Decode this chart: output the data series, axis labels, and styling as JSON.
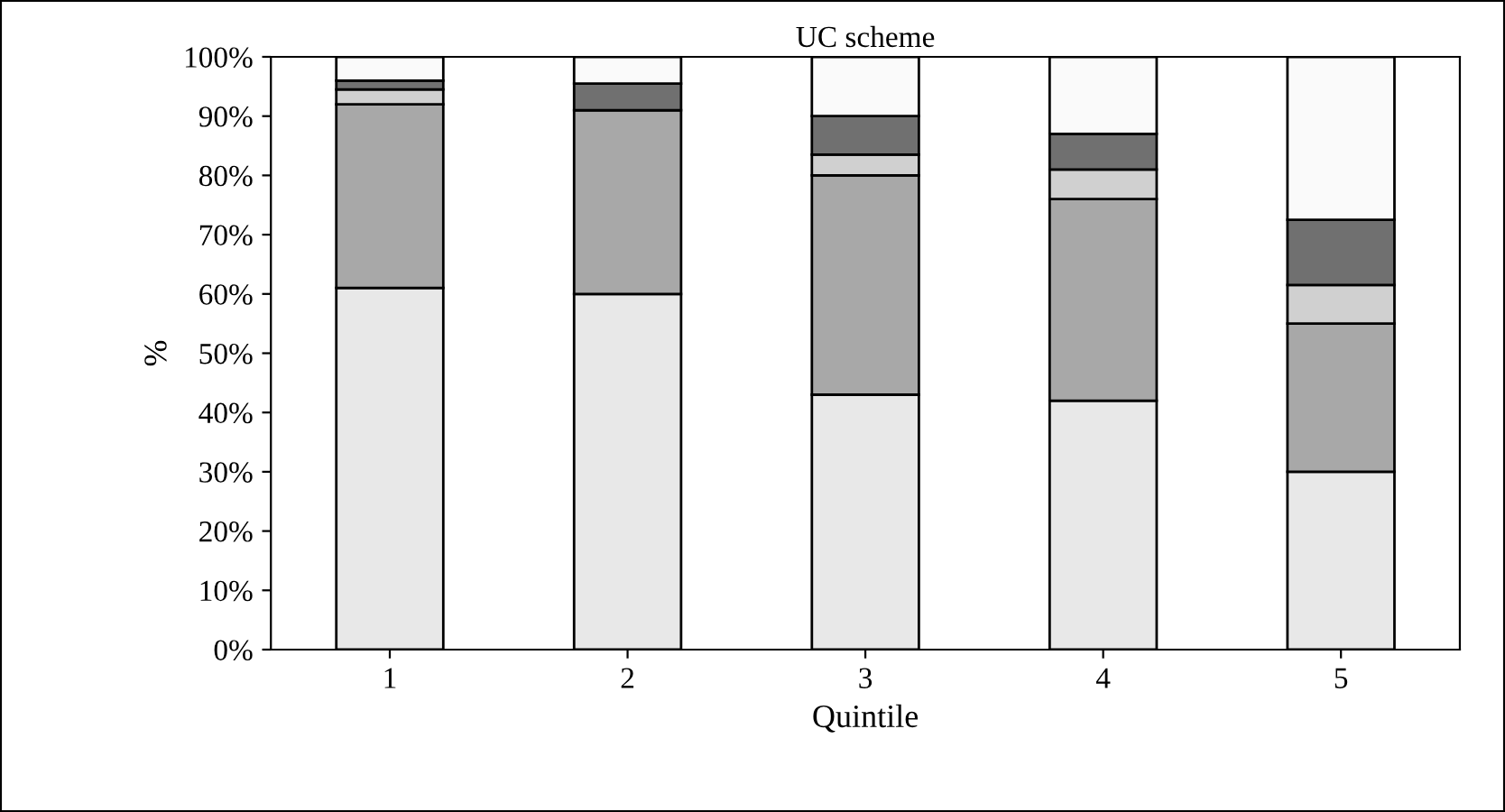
{
  "chart_data": {
    "type": "bar",
    "title": "UC scheme",
    "xlabel": "Quintile",
    "ylabel": "%",
    "stacked": true,
    "categories": [
      "1",
      "2",
      "3",
      "4",
      "5"
    ],
    "series": [
      {
        "color": "#e8e8e8",
        "values": [
          61,
          60,
          43,
          42,
          30
        ]
      },
      {
        "color": "#a8a8a8",
        "values": [
          31,
          31,
          37,
          34,
          25
        ]
      },
      {
        "color": "#d0d0d0",
        "values": [
          2.5,
          0,
          3.5,
          5,
          6.5
        ]
      },
      {
        "color": "#707070",
        "values": [
          1.5,
          4.5,
          6.5,
          6,
          11
        ]
      },
      {
        "color": "#fafafa",
        "values": [
          4,
          4.5,
          10,
          13,
          27.5
        ]
      }
    ],
    "ylim": [
      0,
      100
    ],
    "yticks": [
      {
        "value": 0,
        "label": "0%"
      },
      {
        "value": 10,
        "label": "10%"
      },
      {
        "value": 20,
        "label": "20%"
      },
      {
        "value": 30,
        "label": "30%"
      },
      {
        "value": 40,
        "label": "40%"
      },
      {
        "value": 50,
        "label": "50%"
      },
      {
        "value": 60,
        "label": "60%"
      },
      {
        "value": 70,
        "label": "70%"
      },
      {
        "value": 80,
        "label": "80%"
      },
      {
        "value": 90,
        "label": "90%"
      },
      {
        "value": 100,
        "label": "100%"
      }
    ],
    "grid": false,
    "legend": false
  }
}
